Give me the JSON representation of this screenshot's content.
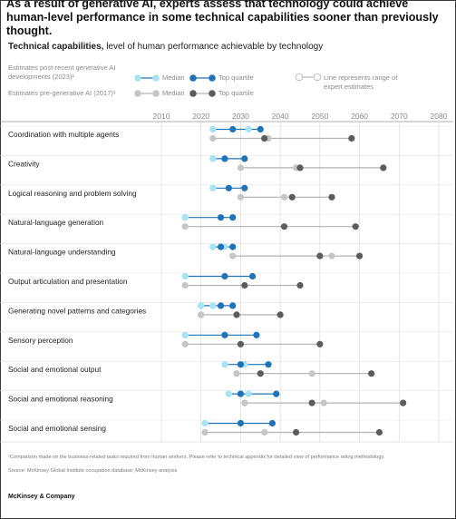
{
  "headline": "As a result of generative AI, experts assess that technology could achieve human-level performance in some technical capabilities sooner than previously thought.",
  "subtitle_bold": "Technical capabilities,",
  "subtitle_rest": " level of human performance achievable by technology",
  "legend": {
    "post_label": "Estimates post-recent generative AI developments (2023)¹",
    "pre_label": "Estimates pre-generative AI (2017)¹",
    "median": "Median",
    "top_quartile": "Top quartile",
    "range_note": "Line represents range of expert estimates"
  },
  "colors": {
    "post_median": "#a8e3f3",
    "post_top": "#1f74b8",
    "post_line": "#1f74b8",
    "pre_median": "#c6c6c6",
    "pre_top": "#5c5c5c",
    "pre_line": "#b3b3b3",
    "grid": "#dadada"
  },
  "chart_data": {
    "type": "scatter",
    "xlim": [
      2010,
      2080
    ],
    "xticks": [
      2010,
      2020,
      2030,
      2040,
      2050,
      2060,
      2070,
      2080
    ],
    "grid": true,
    "categories": [
      "Coordination with multiple agents",
      "Creativity",
      "Logical reasoning and problem solving",
      "Natural-language generation",
      "Natural-language understanding",
      "Output articulation and presentation",
      "Generating novel patterns and categories",
      "Sensory perception",
      "Social and emotional output",
      "Social and emotional reasoning",
      "Social and emotional sensing"
    ],
    "series": [
      {
        "name": "Estimates post-recent generative AI developments (2023)",
        "median": [
          2023,
          2023,
          2023,
          2016,
          2023,
          2016,
          2020,
          2016,
          2026,
          2027,
          2021
        ],
        "top_quartile": [
          2028,
          2026,
          2027,
          2025,
          2025,
          2026,
          2025,
          2026,
          2030,
          2030,
          2030
        ],
        "range": [
          [
            2023,
            2035
          ],
          [
            2023,
            2031
          ],
          [
            2023,
            2031
          ],
          [
            2016,
            2028
          ],
          [
            2023,
            2028
          ],
          [
            2016,
            2033
          ],
          [
            2020,
            2028
          ],
          [
            2016,
            2034
          ],
          [
            2026,
            2037
          ],
          [
            2027,
            2039
          ],
          [
            2021,
            2038
          ]
        ],
        "extra": [
          [
            2032
          ],
          [],
          [],
          [],
          [
            2026
          ],
          [],
          [
            2023
          ],
          [],
          [
            2031
          ],
          [
            2032
          ],
          []
        ]
      },
      {
        "name": "Estimates pre-generative AI (2017)",
        "median": [
          2037,
          2044,
          2041,
          2016,
          2053,
          2016,
          2020,
          2016,
          2029,
          2031,
          2021
        ],
        "top_quartile": [
          2036,
          2045,
          2043,
          2041,
          2050,
          2031,
          2029,
          2030,
          2035,
          2048,
          2044
        ],
        "range": [
          [
            2023,
            2058
          ],
          [
            2030,
            2066
          ],
          [
            2030,
            2053
          ],
          [
            2016,
            2059
          ],
          [
            2028,
            2060
          ],
          [
            2016,
            2045
          ],
          [
            2020,
            2040
          ],
          [
            2016,
            2050
          ],
          [
            2029,
            2063
          ],
          [
            2031,
            2071
          ],
          [
            2021,
            2065
          ]
        ],
        "extra": [
          [],
          [],
          [],
          [],
          [],
          [],
          [],
          [],
          [
            2048
          ],
          [
            2051
          ],
          [
            2036
          ]
        ]
      }
    ]
  },
  "footnote": "¹Comparison made on the business-related tasks required from human workers. Please refer to technical appendix for detailed view of performance rating methodology.",
  "source": "Source: McKinsey Global Institute occupation database; McKinsey analysis",
  "brand": "McKinsey & Company"
}
